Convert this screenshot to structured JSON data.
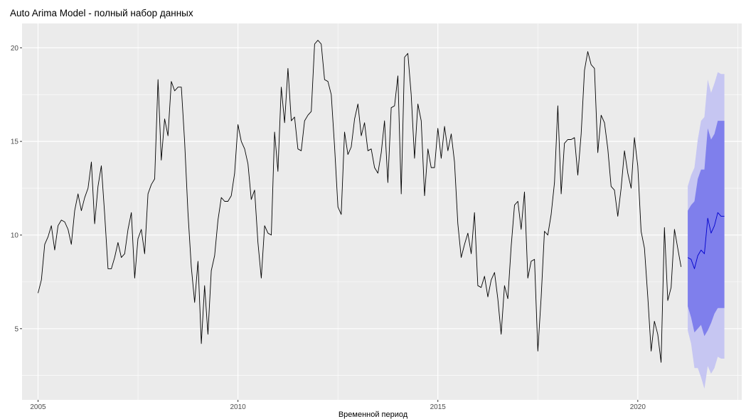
{
  "chart_data": {
    "type": "line",
    "title": "Auto Arima Model - полный набор данных",
    "xlabel": "Временной период",
    "ylabel": "",
    "xlim": [
      2004.6,
      2022.6
    ],
    "ylim": [
      1.2,
      21.3
    ],
    "x_ticks": [
      2005,
      2010,
      2015,
      2020
    ],
    "x_tick_labels": [
      "2005",
      "2010",
      "2015",
      "2020"
    ],
    "y_ticks": [
      5,
      10,
      15,
      20
    ],
    "y_tick_labels": [
      "5",
      "10",
      "15",
      "20"
    ],
    "grid": true,
    "legend": "none",
    "colors": {
      "panel": "#ebebeb",
      "grid": "#ffffff",
      "history_line": "#000000",
      "forecast_line": "#0000cc",
      "band_95": "#c6c6f2",
      "band_80": "#7f7fec"
    },
    "history": {
      "name": "",
      "start_year": 2005,
      "frequency": 12,
      "values": [
        6.9,
        7.6,
        9.5,
        9.9,
        10.5,
        9.2,
        10.5,
        10.8,
        10.7,
        10.3,
        9.5,
        11.3,
        12.2,
        11.3,
        12.0,
        12.5,
        13.9,
        10.6,
        12.6,
        13.7,
        11.1,
        8.2,
        8.2,
        8.8,
        9.6,
        8.8,
        9.0,
        10.3,
        11.2,
        7.7,
        9.8,
        10.3,
        9.0,
        12.2,
        12.7,
        13.0,
        18.3,
        14.0,
        16.2,
        15.3,
        18.2,
        17.7,
        17.9,
        17.9,
        15.0,
        11.2,
        8.3,
        6.4,
        8.6,
        4.2,
        7.3,
        4.7,
        8.1,
        8.9,
        10.8,
        12.0,
        11.8,
        11.8,
        12.1,
        13.3,
        15.9,
        15.0,
        14.6,
        13.8,
        11.9,
        12.4,
        9.6,
        7.7,
        10.5,
        10.1,
        10.0,
        15.5,
        13.4,
        17.9,
        16.0,
        18.9,
        16.1,
        16.3,
        14.6,
        14.5,
        16.1,
        16.4,
        16.6,
        20.2,
        20.4,
        20.2,
        18.3,
        18.2,
        17.5,
        14.7,
        11.5,
        11.1,
        15.5,
        14.3,
        14.7,
        16.2,
        17.0,
        15.3,
        16.0,
        14.5,
        14.6,
        13.6,
        13.3,
        14.4,
        16.1,
        12.8,
        16.8,
        16.9,
        18.5,
        12.2,
        19.5,
        19.7,
        17.5,
        14.1,
        17.0,
        16.1,
        12.1,
        14.6,
        13.6,
        13.6,
        15.7,
        14.1,
        15.8,
        14.5,
        15.4,
        13.9,
        10.6,
        8.8,
        9.5,
        10.1,
        9.0,
        11.2,
        7.3,
        7.2,
        7.8,
        6.7,
        7.6,
        8.0,
        6.6,
        4.7,
        7.3,
        6.6,
        9.4,
        11.6,
        11.8,
        10.3,
        12.3,
        7.7,
        8.6,
        8.7,
        3.8,
        6.7,
        10.2,
        10.0,
        11.1,
        12.8,
        16.9,
        12.2,
        14.9,
        15.1,
        15.1,
        15.2,
        13.2,
        15.4,
        18.8,
        19.8,
        19.1,
        18.9,
        14.4,
        16.4,
        16.0,
        14.6,
        12.6,
        12.4,
        11.0,
        12.5,
        14.5,
        13.3,
        12.5,
        15.2,
        13.7,
        10.2,
        9.3,
        6.7,
        3.8,
        5.4,
        4.7,
        3.2,
        10.4,
        6.5,
        7.2,
        10.3,
        9.3,
        8.3
      ]
    },
    "forecast": {
      "start_year": 2021.25,
      "frequency": 12,
      "mean": [
        8.8,
        8.7,
        8.2,
        8.9,
        9.2,
        9.0,
        10.9,
        10.1,
        10.5,
        11.2,
        11.0,
        11.0
      ],
      "lo80": [
        6.2,
        5.6,
        4.8,
        5.0,
        5.2,
        4.6,
        4.9,
        5.3,
        5.8,
        6.1,
        6.1,
        6.1
      ],
      "hi80": [
        11.3,
        11.6,
        11.8,
        13.0,
        13.5,
        13.5,
        15.7,
        15.1,
        15.4,
        16.1,
        16.1,
        16.1
      ],
      "lo95": [
        4.9,
        4.2,
        2.9,
        2.9,
        2.4,
        1.8,
        3.0,
        2.6,
        2.9,
        3.5,
        3.4,
        3.4
      ],
      "hi95": [
        12.6,
        13.2,
        13.6,
        15.1,
        16.1,
        16.3,
        18.3,
        17.6,
        18.1,
        18.7,
        18.6,
        18.6
      ]
    }
  }
}
